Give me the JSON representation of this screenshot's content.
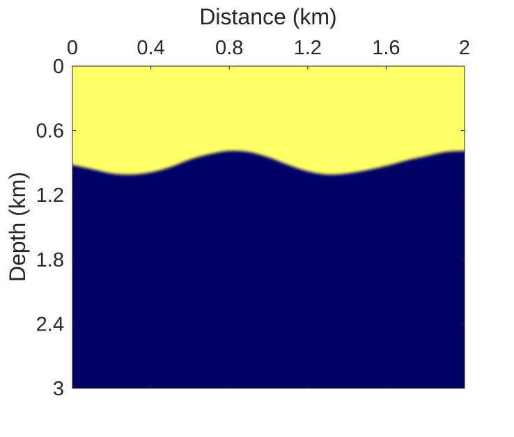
{
  "chart_data": {
    "type": "heatmap",
    "title": "",
    "xlabel": "Distance (km)",
    "ylabel": "Depth (km)",
    "x_axis_position": "top",
    "y_axis_direction": "reversed",
    "xlim": [
      0,
      2
    ],
    "ylim": [
      0,
      3
    ],
    "x_ticks": [
      "0",
      "0.4",
      "0.8",
      "1.2",
      "1.6",
      "2"
    ],
    "y_ticks": [
      "0",
      "0.6",
      "1.2",
      "1.8",
      "2.4",
      "3"
    ],
    "grid": false,
    "legend": "none",
    "colors": {
      "upper_layer": "#ffff66",
      "lower_layer": "#000066",
      "axis": "#262626"
    },
    "interface": {
      "description_units": "depth (km) vs distance (km)",
      "x": [
        0,
        0.1,
        0.2,
        0.3,
        0.4,
        0.5,
        0.6,
        0.7,
        0.8,
        0.9,
        1.0,
        1.1,
        1.2,
        1.3,
        1.4,
        1.5,
        1.6,
        1.7,
        1.8,
        1.9,
        2.0
      ],
      "depth": [
        0.92,
        0.96,
        1.0,
        1.01,
        0.99,
        0.94,
        0.87,
        0.82,
        0.79,
        0.8,
        0.85,
        0.92,
        0.98,
        1.01,
        1.0,
        0.97,
        0.93,
        0.88,
        0.84,
        0.8,
        0.79
      ]
    }
  }
}
